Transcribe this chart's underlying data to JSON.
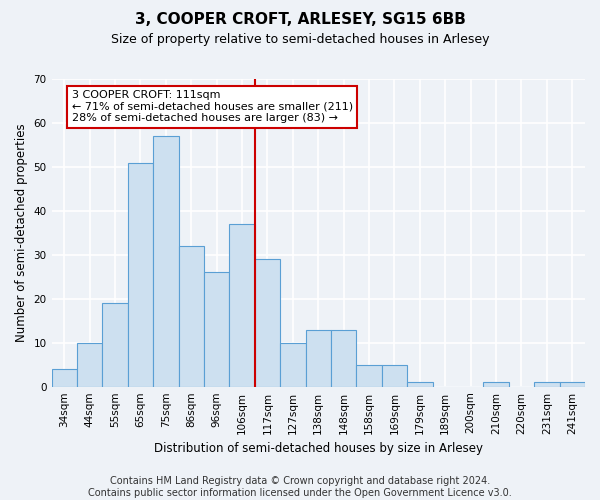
{
  "title": "3, COOPER CROFT, ARLESEY, SG15 6BB",
  "subtitle": "Size of property relative to semi-detached houses in Arlesey",
  "xlabel": "Distribution of semi-detached houses by size in Arlesey",
  "ylabel": "Number of semi-detached properties",
  "categories": [
    "34sqm",
    "44sqm",
    "55sqm",
    "65sqm",
    "75sqm",
    "86sqm",
    "96sqm",
    "106sqm",
    "117sqm",
    "127sqm",
    "138sqm",
    "148sqm",
    "158sqm",
    "169sqm",
    "179sqm",
    "189sqm",
    "200sqm",
    "210sqm",
    "220sqm",
    "231sqm",
    "241sqm"
  ],
  "values": [
    4,
    10,
    19,
    51,
    57,
    32,
    26,
    37,
    29,
    10,
    13,
    13,
    5,
    5,
    1,
    0,
    0,
    1,
    0,
    1,
    1
  ],
  "bar_color": "#cde0f0",
  "bar_edgecolor": "#5a9fd4",
  "vline_color": "#cc0000",
  "annotation_text": "3 COOPER CROFT: 111sqm\n← 71% of semi-detached houses are smaller (211)\n28% of semi-detached houses are larger (83) →",
  "annotation_box_facecolor": "#ffffff",
  "annotation_box_edgecolor": "#cc0000",
  "ylim": [
    0,
    70
  ],
  "yticks": [
    0,
    10,
    20,
    30,
    40,
    50,
    60,
    70
  ],
  "footer": "Contains HM Land Registry data © Crown copyright and database right 2024.\nContains public sector information licensed under the Open Government Licence v3.0.",
  "background_color": "#eef2f7",
  "plot_background_color": "#eef2f7",
  "grid_color": "#ffffff",
  "title_fontsize": 11,
  "subtitle_fontsize": 9,
  "axis_label_fontsize": 8.5,
  "tick_fontsize": 7.5,
  "annotation_fontsize": 8,
  "footer_fontsize": 7
}
